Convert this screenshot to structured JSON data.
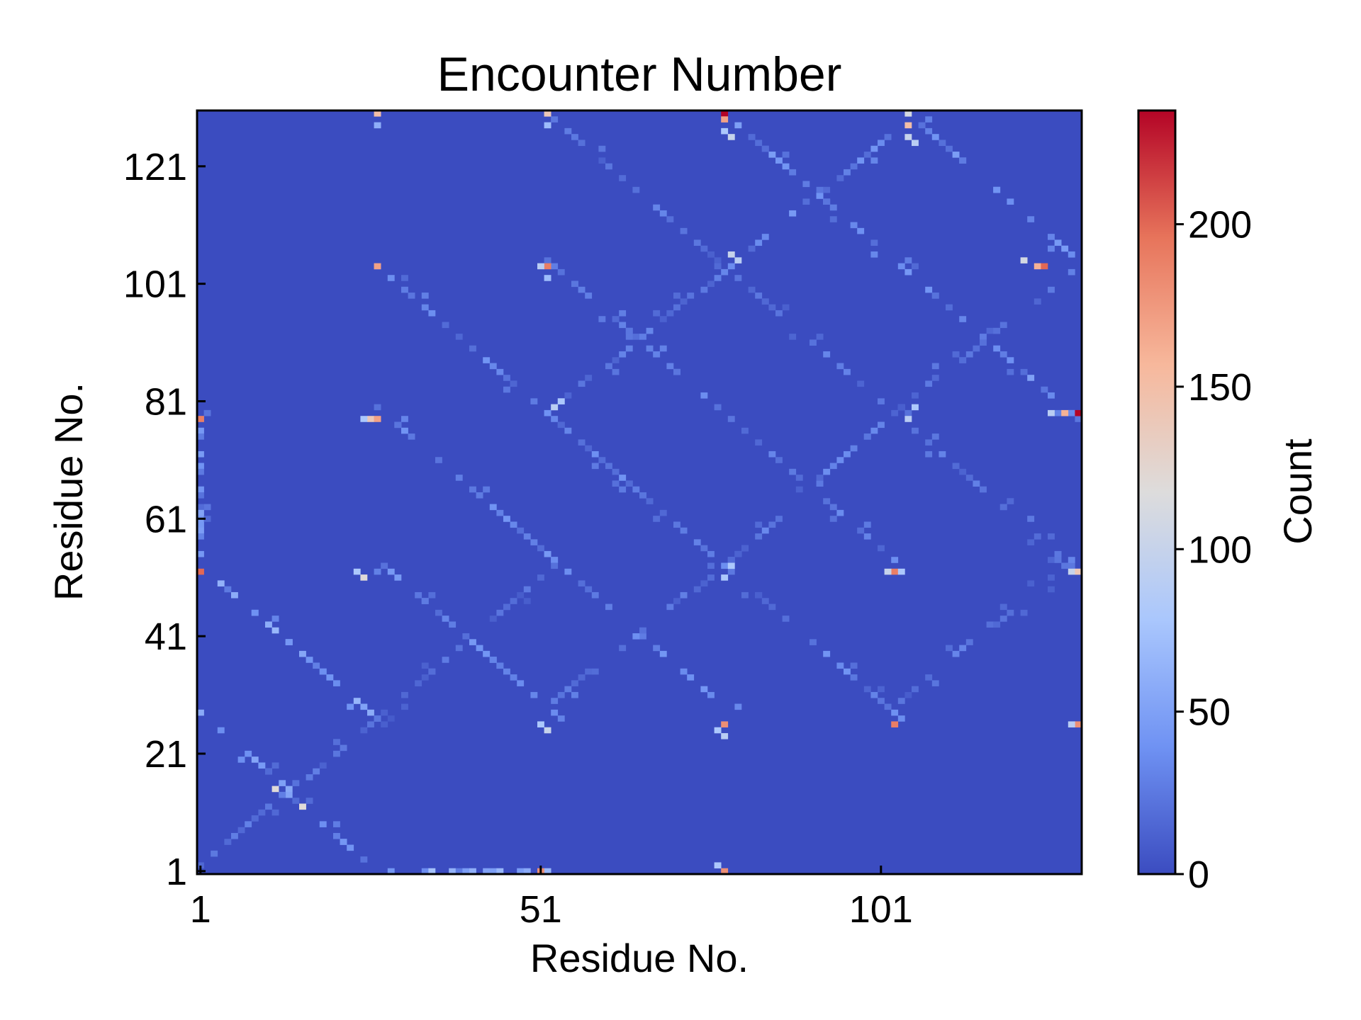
{
  "chart_data": {
    "type": "heatmap",
    "title": "Encounter Number",
    "xlabel": "Residue No.",
    "ylabel": "Residue No.",
    "colorbar_label": "Count",
    "x_range": [
      1,
      130
    ],
    "y_range": [
      1,
      130
    ],
    "x_ticks": [
      1,
      51,
      101
    ],
    "y_ticks": [
      1,
      21,
      41,
      61,
      81,
      101,
      121
    ],
    "colorbar_ticks": [
      0,
      50,
      100,
      150,
      200
    ],
    "value_range": [
      0,
      235
    ],
    "colormap": "coolwarm",
    "colormap_stops": [
      "#3b4cc0",
      "#6f92f3",
      "#aac7fd",
      "#dddcdc",
      "#f7b89c",
      "#e7745b",
      "#b40426"
    ],
    "background_value": 0,
    "cells": [
      {
        "x": 27,
        "y": 130,
        "v": 150
      },
      {
        "x": 27,
        "y": 128,
        "v": 60
      },
      {
        "x": 52,
        "y": 130,
        "v": 140
      },
      {
        "x": 52,
        "y": 128,
        "v": 70
      },
      {
        "x": 78,
        "y": 130,
        "v": 235
      },
      {
        "x": 78,
        "y": 129,
        "v": 170
      },
      {
        "x": 79,
        "y": 126,
        "v": 100
      },
      {
        "x": 78,
        "y": 127,
        "v": 80
      },
      {
        "x": 105,
        "y": 130,
        "v": 110
      },
      {
        "x": 105,
        "y": 128,
        "v": 150
      },
      {
        "x": 105,
        "y": 126,
        "v": 100
      },
      {
        "x": 106,
        "y": 125,
        "v": 90
      },
      {
        "x": 27,
        "y": 104,
        "v": 170
      },
      {
        "x": 52,
        "y": 104,
        "v": 190
      },
      {
        "x": 51,
        "y": 104,
        "v": 90
      },
      {
        "x": 52,
        "y": 102,
        "v": 70
      },
      {
        "x": 80,
        "y": 105,
        "v": 90
      },
      {
        "x": 79,
        "y": 106,
        "v": 100
      },
      {
        "x": 124,
        "y": 104,
        "v": 160
      },
      {
        "x": 125,
        "y": 104,
        "v": 200
      },
      {
        "x": 122,
        "y": 105,
        "v": 110
      },
      {
        "x": 26,
        "y": 78,
        "v": 140
      },
      {
        "x": 27,
        "y": 78,
        "v": 170
      },
      {
        "x": 25,
        "y": 78,
        "v": 80
      },
      {
        "x": 53,
        "y": 80,
        "v": 90
      },
      {
        "x": 54,
        "y": 81,
        "v": 80
      },
      {
        "x": 105,
        "y": 78,
        "v": 90
      },
      {
        "x": 106,
        "y": 80,
        "v": 80
      },
      {
        "x": 130,
        "y": 79,
        "v": 235
      },
      {
        "x": 128,
        "y": 79,
        "v": 160
      },
      {
        "x": 126,
        "y": 79,
        "v": 90
      },
      {
        "x": 1,
        "y": 78,
        "v": 190
      },
      {
        "x": 1,
        "y": 52,
        "v": 200
      },
      {
        "x": 25,
        "y": 51,
        "v": 120
      },
      {
        "x": 24,
        "y": 52,
        "v": 80
      },
      {
        "x": 78,
        "y": 51,
        "v": 80
      },
      {
        "x": 79,
        "y": 53,
        "v": 80
      },
      {
        "x": 103,
        "y": 52,
        "v": 190
      },
      {
        "x": 102,
        "y": 52,
        "v": 100
      },
      {
        "x": 104,
        "y": 52,
        "v": 80
      },
      {
        "x": 129,
        "y": 52,
        "v": 100
      },
      {
        "x": 130,
        "y": 52,
        "v": 140
      },
      {
        "x": 78,
        "y": 26,
        "v": 180
      },
      {
        "x": 78,
        "y": 24,
        "v": 90
      },
      {
        "x": 77,
        "y": 25,
        "v": 80
      },
      {
        "x": 103,
        "y": 26,
        "v": 190
      },
      {
        "x": 130,
        "y": 26,
        "v": 180
      },
      {
        "x": 129,
        "y": 26,
        "v": 90
      },
      {
        "x": 52,
        "y": 25,
        "v": 100
      },
      {
        "x": 51,
        "y": 26,
        "v": 80
      },
      {
        "x": 12,
        "y": 15,
        "v": 120
      },
      {
        "x": 16,
        "y": 12,
        "v": 120
      },
      {
        "x": 51,
        "y": 1,
        "v": 180
      },
      {
        "x": 78,
        "y": 1,
        "v": 180
      },
      {
        "x": 77,
        "y": 2,
        "v": 80
      }
    ],
    "diagonal_bands": [
      {
        "from": [
          1,
          53
        ],
        "to": [
          27,
          27
        ],
        "v": 45
      },
      {
        "from": [
          27,
          80
        ],
        "to": [
          80,
          27
        ],
        "v": 30
      },
      {
        "from": [
          27,
          104
        ],
        "to": [
          104,
          27
        ],
        "v": 28
      },
      {
        "from": [
          53,
          104
        ],
        "to": [
          104,
          53
        ],
        "v": 25
      },
      {
        "from": [
          78,
          130
        ],
        "to": [
          130,
          78
        ],
        "v": 35
      },
      {
        "from": [
          105,
          130
        ],
        "to": [
          130,
          105
        ],
        "v": 35
      },
      {
        "from": [
          52,
          130
        ],
        "to": [
          130,
          52
        ],
        "v": 22
      },
      {
        "from": [
          1,
          28
        ],
        "to": [
          27,
          1
        ],
        "v": 40
      },
      {
        "from": [
          28,
          53
        ],
        "to": [
          53,
          28
        ],
        "v": 30
      },
      {
        "from": [
          27,
          1
        ],
        "to": [
          52,
          1
        ],
        "v": 50
      },
      {
        "from": [
          1,
          80
        ],
        "to": [
          1,
          55
        ],
        "v": 35
      },
      {
        "from": [
          53,
          30
        ],
        "to": [
          80,
          55
        ],
        "v": 25
      },
      {
        "from": [
          80,
          55
        ],
        "to": [
          104,
          80
        ],
        "v": 25
      },
      {
        "from": [
          104,
          80
        ],
        "to": [
          130,
          104
        ],
        "v": 25
      },
      {
        "from": [
          53,
          80
        ],
        "to": [
          80,
          105
        ],
        "v": 22
      },
      {
        "from": [
          1,
          2
        ],
        "to": [
          27,
          27
        ],
        "v": 22
      },
      {
        "from": [
          27,
          27
        ],
        "to": [
          53,
          53
        ],
        "v": 18
      },
      {
        "from": [
          80,
          105
        ],
        "to": [
          104,
          128
        ],
        "v": 30
      },
      {
        "from": [
          104,
          30
        ],
        "to": [
          130,
          55
        ],
        "v": 22
      }
    ]
  }
}
